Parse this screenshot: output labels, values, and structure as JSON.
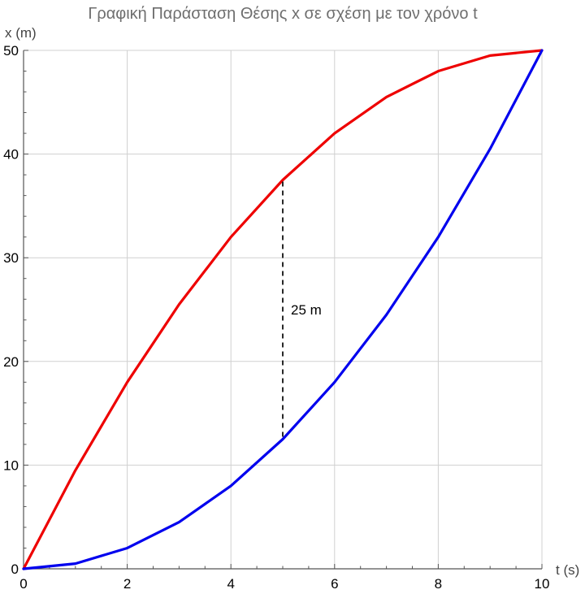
{
  "chart_data": {
    "type": "line",
    "title": "Γραφική Παράσταση Θέσης x σε σχέση με τον χρόνο t",
    "xlabel": "t (s)",
    "ylabel": "x (m)",
    "xlim": [
      0,
      10
    ],
    "ylim": [
      0,
      50
    ],
    "grid": true,
    "x_ticks": [
      0,
      2,
      4,
      6,
      8,
      10
    ],
    "y_ticks": [
      0,
      10,
      20,
      30,
      40,
      50
    ],
    "colors": {
      "red_series": "#ee0000",
      "blue_series": "#0000ee",
      "grid": "#d0d0d0"
    },
    "series": [
      {
        "color": "#ee0000",
        "x": [
          0,
          1,
          2,
          3,
          4,
          5,
          6,
          7,
          8,
          9,
          10
        ],
        "values": [
          0,
          9.5,
          18,
          25.5,
          32,
          37.5,
          42,
          45.5,
          48,
          49.5,
          50
        ]
      },
      {
        "color": "#0000ee",
        "x": [
          0,
          1,
          2,
          3,
          4,
          5,
          6,
          7,
          8,
          9,
          10
        ],
        "values": [
          0,
          0.5,
          2,
          4.5,
          8,
          12.5,
          18,
          24.5,
          32,
          40.5,
          50
        ]
      }
    ],
    "annotations": [
      {
        "text": "25 m",
        "x": 5,
        "y_from": 12.5,
        "y_to": 37.5,
        "style": "dashed"
      }
    ]
  }
}
